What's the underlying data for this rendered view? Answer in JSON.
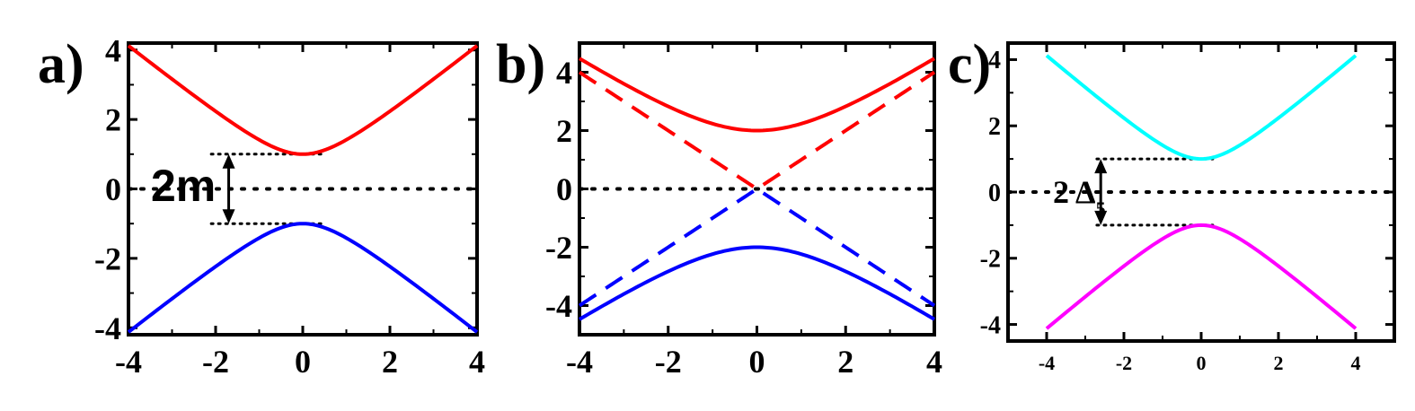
{
  "chart_data": [
    {
      "panel_label": "a)",
      "type": "line",
      "xlim": [
        -4,
        4
      ],
      "ylim": [
        -4.2,
        4.2
      ],
      "xticks": [
        -4,
        -2,
        0,
        2,
        4
      ],
      "yticks": [
        4,
        2,
        0,
        -2,
        -4
      ],
      "xtick_labels": [
        "-4",
        "-2",
        "0",
        "2",
        "4"
      ],
      "ytick_labels": [
        "4",
        "2",
        "0",
        "-2",
        "-4"
      ],
      "series": [
        {
          "color": "#ff0000",
          "style": "solid",
          "formula": "+sqrt(x^2+m^2)",
          "m": 1,
          "points": [
            [
              -4,
              4.12
            ],
            [
              -3,
              3.16
            ],
            [
              -2,
              2.24
            ],
            [
              -1,
              1.41
            ],
            [
              0,
              1.0
            ],
            [
              1,
              1.41
            ],
            [
              2,
              2.24
            ],
            [
              3,
              3.16
            ],
            [
              4,
              4.12
            ]
          ]
        },
        {
          "color": "#0000ff",
          "style": "solid",
          "formula": "-sqrt(x^2+m^2)",
          "m": 1,
          "points": [
            [
              -4,
              -4.12
            ],
            [
              -3,
              -3.16
            ],
            [
              -2,
              -2.24
            ],
            [
              -1,
              -1.41
            ],
            [
              0,
              -1.0
            ],
            [
              1,
              -1.41
            ],
            [
              2,
              -2.24
            ],
            [
              3,
              -3.16
            ],
            [
              4,
              -4.12
            ]
          ]
        }
      ],
      "reference_lines": [
        {
          "y": 0,
          "x_from": -4,
          "x_to": 4,
          "style": "dotted"
        },
        {
          "y": 1,
          "x_from": -2.1,
          "x_to": 0.5,
          "style": "dotted"
        },
        {
          "y": -1,
          "x_from": -2.1,
          "x_to": 0.5,
          "style": "dotted"
        }
      ],
      "gap_annotation": {
        "text": "2m",
        "arrow_x": -1.7,
        "y_from": -1,
        "y_to": 1
      }
    },
    {
      "panel_label": "b)",
      "type": "line",
      "xlim": [
        -4,
        4
      ],
      "ylim": [
        -5,
        5
      ],
      "xticks": [
        -4,
        -2,
        0,
        2,
        4
      ],
      "yticks": [
        4,
        2,
        0,
        -2,
        -4
      ],
      "xtick_labels": [
        "-4",
        "-2",
        "0",
        "2",
        "4"
      ],
      "ytick_labels": [
        "4",
        "2",
        "0",
        "-2",
        "-4"
      ],
      "series": [
        {
          "color": "#ff0000",
          "style": "solid",
          "formula": "+sqrt(x^2+4)",
          "points": [
            [
              -4,
              4.47
            ],
            [
              -2,
              2.83
            ],
            [
              0,
              2.0
            ],
            [
              2,
              2.83
            ],
            [
              4,
              4.47
            ]
          ]
        },
        {
          "color": "#0000ff",
          "style": "solid",
          "formula": "-sqrt(x^2+4)",
          "points": [
            [
              -4,
              -4.47
            ],
            [
              -2,
              -2.83
            ],
            [
              0,
              -2.0
            ],
            [
              2,
              -2.83
            ],
            [
              4,
              -4.47
            ]
          ]
        },
        {
          "color": "#ff0000",
          "style": "dashed",
          "formula": "+|x|",
          "points": [
            [
              -4,
              4
            ],
            [
              0,
              0
            ],
            [
              4,
              4
            ]
          ]
        },
        {
          "color": "#0000ff",
          "style": "dashed",
          "formula": "-|x|",
          "points": [
            [
              -4,
              -4
            ],
            [
              0,
              0
            ],
            [
              4,
              -4
            ]
          ]
        }
      ],
      "reference_lines": [
        {
          "y": 0,
          "x_from": -4,
          "x_to": 4,
          "style": "dotted"
        }
      ]
    },
    {
      "panel_label": "c)",
      "type": "line",
      "xlim": [
        -5,
        5
      ],
      "ylim": [
        -4.5,
        4.5
      ],
      "xticks": [
        -4,
        -2,
        0,
        2,
        4
      ],
      "yticks": [
        4,
        2,
        0,
        -2,
        -4
      ],
      "xtick_labels": [
        "-4",
        "-2",
        "0",
        "2",
        "4"
      ],
      "ytick_labels": [
        "4",
        "2",
        "0",
        "-2",
        "-4"
      ],
      "series": [
        {
          "color": "#00ffff",
          "style": "solid",
          "formula": "+sqrt(x^2+1)",
          "points": [
            [
              -4,
              4.12
            ],
            [
              -2,
              2.24
            ],
            [
              0,
              1.0
            ],
            [
              2,
              2.24
            ],
            [
              4,
              4.12
            ]
          ]
        },
        {
          "color": "#ff00ff",
          "style": "solid",
          "formula": "-sqrt(x^2+1)",
          "points": [
            [
              -4,
              -4.12
            ],
            [
              -2,
              -2.24
            ],
            [
              0,
              -1.0
            ],
            [
              2,
              -2.24
            ],
            [
              4,
              -4.12
            ]
          ]
        }
      ],
      "reference_lines": [
        {
          "y": 0,
          "x_from": -5,
          "x_to": 5,
          "style": "dotted"
        },
        {
          "y": 1,
          "x_from": -2.7,
          "x_to": 0.3,
          "style": "dotted"
        },
        {
          "y": -1,
          "x_from": -2.7,
          "x_to": 0.3,
          "style": "dotted"
        }
      ],
      "gap_annotation": {
        "text": "2 Δ",
        "subscript": "5",
        "arrow_x": -2.6,
        "y_from": -1,
        "y_to": 1
      }
    }
  ]
}
